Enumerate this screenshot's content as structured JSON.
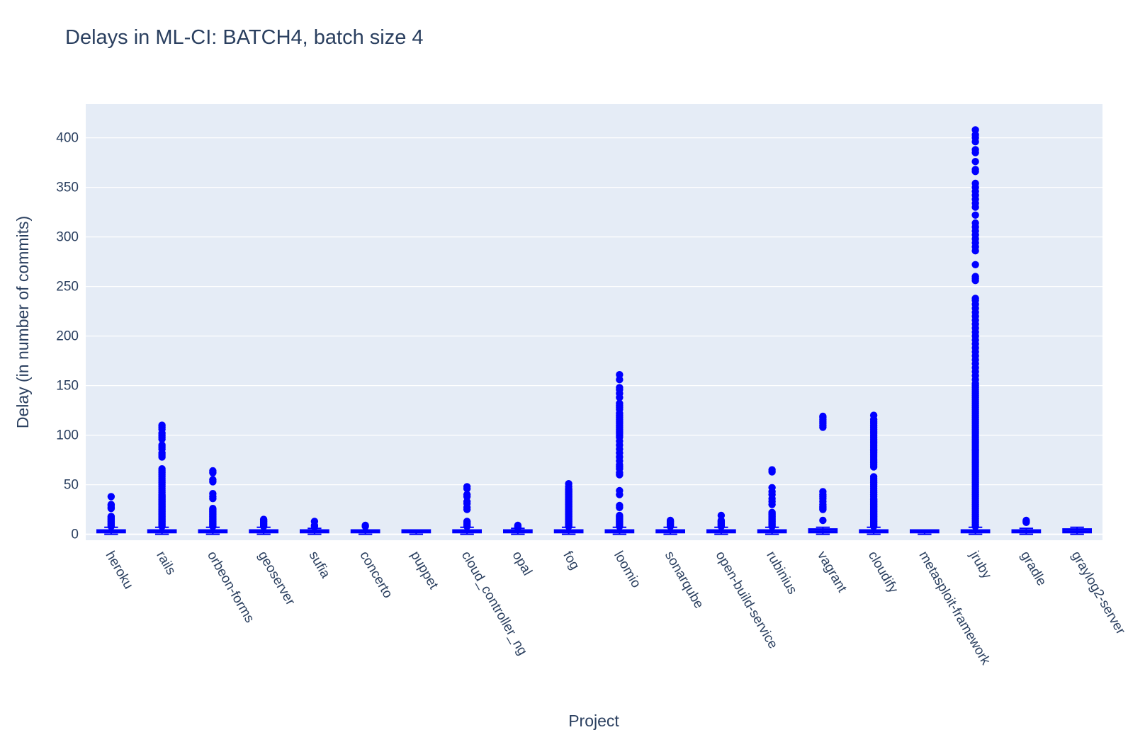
{
  "chart_data": {
    "type": "box",
    "title": "Delays in ML-CI: BATCH4, batch size 4",
    "xlabel": "Project",
    "ylabel": "Delay (in number of commits)",
    "ylim": [
      -6,
      434
    ],
    "yticks": [
      0,
      50,
      100,
      150,
      200,
      250,
      300,
      350,
      400
    ],
    "grid": true,
    "legend": "none",
    "colors": {
      "plot_bg": "#e5ecf6",
      "grid": "#ffffff",
      "marker": "#0000ff",
      "text": "#2a3f5f"
    },
    "series": [
      {
        "category": "heroku",
        "q1": 2,
        "median": 3,
        "q3": 4,
        "whisker_low": 0,
        "whisker_high": 7,
        "outliers": [
          8,
          9,
          10,
          11,
          12,
          13,
          14,
          15,
          16,
          17,
          18,
          26,
          27,
          29,
          30,
          38
        ]
      },
      {
        "category": "rails",
        "q1": 2,
        "median": 3,
        "q3": 4,
        "whisker_low": 0,
        "whisker_high": 7,
        "outliers": [
          8,
          9,
          10,
          11,
          12,
          13,
          14,
          15,
          16,
          17,
          18,
          19,
          20,
          21,
          22,
          23,
          24,
          25,
          26,
          27,
          28,
          29,
          30,
          31,
          32,
          33,
          34,
          35,
          36,
          37,
          38,
          39,
          40,
          42,
          44,
          46,
          48,
          50,
          52,
          54,
          56,
          58,
          60,
          62,
          64,
          66,
          78,
          80,
          82,
          86,
          88,
          90,
          96,
          98,
          100,
          102,
          106,
          108,
          110
        ]
      },
      {
        "category": "orbeon-forms",
        "q1": 2,
        "median": 3,
        "q3": 4,
        "whisker_low": 0,
        "whisker_high": 7,
        "outliers": [
          8,
          9,
          10,
          11,
          12,
          13,
          14,
          15,
          16,
          17,
          18,
          19,
          20,
          21,
          22,
          23,
          24,
          25,
          26,
          36,
          38,
          41,
          53,
          55,
          62,
          64
        ]
      },
      {
        "category": "geoserver",
        "q1": 2,
        "median": 3,
        "q3": 4,
        "whisker_low": 0,
        "whisker_high": 7,
        "outliers": [
          8,
          9,
          10,
          11,
          12,
          13,
          14,
          15
        ]
      },
      {
        "category": "sufia",
        "q1": 2,
        "median": 3,
        "q3": 4,
        "whisker_low": 0,
        "whisker_high": 6,
        "outliers": [
          8,
          9,
          13
        ]
      },
      {
        "category": "concerto",
        "q1": 2,
        "median": 3,
        "q3": 4,
        "whisker_low": 0,
        "whisker_high": 4,
        "outliers": [
          8,
          9
        ]
      },
      {
        "category": "puppet",
        "q1": 2,
        "median": 3,
        "q3": 4,
        "whisker_low": 0,
        "whisker_high": 4,
        "outliers": []
      },
      {
        "category": "cloud_controller_ng",
        "q1": 2,
        "median": 3,
        "q3": 4,
        "whisker_low": 0,
        "whisker_high": 7,
        "outliers": [
          8,
          9,
          10,
          11,
          12,
          13,
          25,
          27,
          31,
          33,
          38,
          40,
          46,
          48
        ]
      },
      {
        "category": "opal",
        "q1": 2,
        "median": 3,
        "q3": 4,
        "whisker_low": 0,
        "whisker_high": 6,
        "outliers": [
          7,
          8,
          9
        ]
      },
      {
        "category": "fog",
        "q1": 2,
        "median": 3,
        "q3": 4,
        "whisker_low": 0,
        "whisker_high": 7,
        "outliers": [
          8,
          9,
          10,
          11,
          12,
          13,
          14,
          15,
          16,
          17,
          18,
          19,
          20,
          21,
          22,
          23,
          24,
          25,
          26,
          27,
          28,
          29,
          30,
          31,
          32,
          33,
          34,
          35,
          36,
          37,
          38,
          39,
          40,
          41,
          42,
          43,
          44,
          45,
          46,
          48,
          51
        ]
      },
      {
        "category": "loomio",
        "q1": 2,
        "median": 3,
        "q3": 4,
        "whisker_low": 0,
        "whisker_high": 7,
        "outliers": [
          8,
          9,
          10,
          11,
          12,
          13,
          14,
          15,
          16,
          17,
          18,
          19,
          27,
          29,
          40,
          44,
          60,
          62,
          66,
          68,
          70,
          74,
          78,
          82,
          86,
          90,
          94,
          98,
          100,
          102,
          104,
          106,
          108,
          110,
          112,
          114,
          116,
          118,
          120,
          122,
          126,
          128,
          130,
          132,
          138,
          142,
          146,
          148,
          156,
          161
        ]
      },
      {
        "category": "sonarqube",
        "q1": 2,
        "median": 3,
        "q3": 4,
        "whisker_low": 0,
        "whisker_high": 7,
        "outliers": [
          8,
          9,
          10,
          11,
          12,
          13,
          14
        ]
      },
      {
        "category": "open-build-service",
        "q1": 2,
        "median": 3,
        "q3": 4,
        "whisker_low": 0,
        "whisker_high": 7,
        "outliers": [
          8,
          9,
          10,
          11,
          12,
          13,
          14,
          19
        ]
      },
      {
        "category": "rubinius",
        "q1": 2,
        "median": 3,
        "q3": 4,
        "whisker_low": 0,
        "whisker_high": 7,
        "outliers": [
          8,
          9,
          10,
          11,
          12,
          13,
          14,
          15,
          16,
          17,
          18,
          19,
          20,
          21,
          22,
          30,
          33,
          36,
          40,
          43,
          47,
          63,
          65
        ]
      },
      {
        "category": "vagrant",
        "q1": 2,
        "median": 3,
        "q3": 5,
        "whisker_low": 0,
        "whisker_high": 7,
        "outliers": [
          14,
          25,
          26,
          27,
          28,
          30,
          33,
          36,
          38,
          40,
          43,
          108,
          110,
          112,
          114,
          116,
          118,
          119
        ]
      },
      {
        "category": "cloudify",
        "q1": 2,
        "median": 3,
        "q3": 4,
        "whisker_low": 0,
        "whisker_high": 7,
        "outliers": [
          8,
          9,
          10,
          11,
          12,
          13,
          14,
          15,
          16,
          17,
          18,
          19,
          20,
          21,
          22,
          23,
          24,
          25,
          26,
          27,
          28,
          29,
          30,
          31,
          32,
          33,
          34,
          35,
          36,
          38,
          40,
          42,
          44,
          46,
          48,
          50,
          52,
          54,
          56,
          58,
          68,
          70,
          72,
          74,
          76,
          78,
          80,
          82,
          84,
          86,
          88,
          90,
          92,
          94,
          96,
          98,
          100,
          102,
          104,
          106,
          108,
          110,
          112,
          114,
          116,
          120
        ]
      },
      {
        "category": "metasploit-framework",
        "q1": 2,
        "median": 3,
        "q3": 4,
        "whisker_low": 0,
        "whisker_high": 4,
        "outliers": []
      },
      {
        "category": "jruby",
        "q1": 2,
        "median": 3,
        "q3": 4,
        "whisker_low": 0,
        "whisker_high": 7,
        "outliers": [
          8,
          10,
          12,
          14,
          16,
          18,
          20,
          22,
          24,
          26,
          28,
          30,
          32,
          34,
          36,
          38,
          40,
          42,
          44,
          46,
          48,
          50,
          52,
          54,
          56,
          58,
          60,
          62,
          64,
          66,
          68,
          70,
          72,
          74,
          76,
          78,
          80,
          82,
          84,
          86,
          88,
          90,
          92,
          94,
          96,
          98,
          100,
          102,
          104,
          106,
          108,
          110,
          112,
          114,
          116,
          118,
          120,
          122,
          124,
          126,
          128,
          130,
          132,
          134,
          136,
          138,
          140,
          142,
          144,
          146,
          148,
          150,
          152,
          156,
          160,
          164,
          168,
          172,
          176,
          180,
          184,
          188,
          192,
          196,
          200,
          204,
          208,
          212,
          216,
          220,
          224,
          228,
          232,
          236,
          238,
          256,
          258,
          260,
          272,
          286,
          290,
          294,
          298,
          302,
          306,
          310,
          314,
          322,
          330,
          334,
          338,
          342,
          346,
          350,
          354,
          366,
          368,
          376,
          385,
          388,
          396,
          400,
          403,
          408
        ]
      },
      {
        "category": "gradle",
        "q1": 2,
        "median": 3,
        "q3": 4,
        "whisker_low": 0,
        "whisker_high": 6,
        "outliers": [
          12,
          13,
          14
        ]
      },
      {
        "category": "graylog2-server",
        "q1": 2,
        "median": 3,
        "q3": 5,
        "whisker_low": 0,
        "whisker_high": 7,
        "outliers": []
      }
    ]
  }
}
